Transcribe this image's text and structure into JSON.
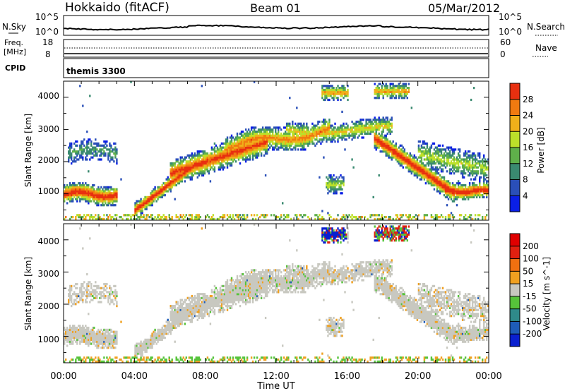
{
  "header": {
    "station": "Hokkaido (fitACF)",
    "beam": "Beam 01",
    "date": "05/Mar/2012"
  },
  "noise_panel": {
    "left_label": "N.Sky",
    "right_label": "N.Search",
    "left_ticks": [
      "10^5",
      "10^0"
    ],
    "right_ticks": [
      "10^5",
      "10^0"
    ]
  },
  "freq_panel": {
    "left_label_line1": "Freq.",
    "left_label_line2": "[MHz]",
    "right_label": "Nave",
    "left_ticks": [
      "18",
      "8"
    ],
    "right_ticks": [
      "60",
      "0"
    ]
  },
  "cpid_panel": {
    "label": "CPID",
    "value": "themis 3300"
  },
  "chart_data": [
    {
      "type": "heatmap",
      "title": "",
      "xlabel": "Time UT",
      "ylabel": "Slant Range [km]",
      "xlim": [
        0,
        24
      ],
      "ylim": [
        180,
        4500
      ],
      "yticks": [
        "1000",
        "2000",
        "3000",
        "4000"
      ],
      "xticks": [
        "00:00",
        "04:00",
        "08:00",
        "12:00",
        "16:00",
        "20:00",
        "00:00"
      ],
      "colorbar": {
        "label": "Power [dB]",
        "ticks": [
          "4",
          "8",
          "12",
          "16",
          "20",
          "24",
          "28"
        ],
        "colors": [
          "#0a1fe6",
          "#2a4fb8",
          "#3a8a70",
          "#5fb04a",
          "#bce02a",
          "#f0b01a",
          "#f07a10",
          "#e83010"
        ]
      },
      "features": [
        {
          "name": "morning band",
          "t": [
            0.0,
            1.5,
            3.0
          ],
          "range": [
            950,
            900,
            1000
          ]
        },
        {
          "name": "main arc",
          "t": [
            4.0,
            6.5,
            9.0,
            11.5,
            14.0
          ],
          "range": [
            300,
            1500,
            2100,
            2500,
            2700
          ]
        },
        {
          "name": "evening band",
          "t": [
            18.5,
            20.5,
            22.5,
            24.0
          ],
          "range": [
            2200,
            1500,
            1050,
            1000
          ]
        }
      ]
    },
    {
      "type": "heatmap",
      "title": "",
      "xlabel": "Time UT",
      "ylabel": "Slant Range [km]",
      "xlim": [
        0,
        24
      ],
      "ylim": [
        180,
        4500
      ],
      "yticks": [
        "1000",
        "2000",
        "3000",
        "4000"
      ],
      "xticks": [
        "00:00",
        "04:00",
        "08:00",
        "12:00",
        "16:00",
        "20:00",
        "00:00"
      ],
      "colorbar": {
        "label": "Velocity [m s^-1]",
        "ticks": [
          "200",
          "100",
          "50",
          "15",
          "-15",
          "-50",
          "-100",
          "-200"
        ],
        "colors": [
          "#0a20d0",
          "#1e5cb8",
          "#2f8a8a",
          "#56c33a",
          "#c8c8c0",
          "#f0a020",
          "#f07010",
          "#e02010",
          "#e00000"
        ]
      }
    }
  ],
  "axis": {
    "xlabel": "Time UT",
    "xticks": [
      "00:00",
      "04:00",
      "08:00",
      "12:00",
      "16:00",
      "20:00",
      "00:00"
    ]
  }
}
